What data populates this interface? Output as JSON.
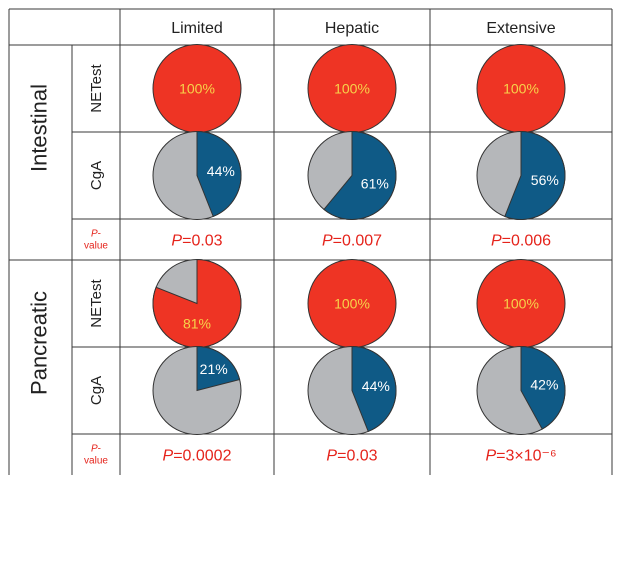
{
  "chart_data": {
    "type": "pie",
    "columns": [
      "Limited",
      "Hepatic",
      "Extensive"
    ],
    "groups": [
      {
        "name": "Intestinal",
        "rows": [
          {
            "marker": "NETest",
            "values": [
              100,
              100,
              100
            ],
            "labels": [
              "100%",
              "100%",
              "100%"
            ]
          },
          {
            "marker": "CgA",
            "values": [
              44,
              61,
              56
            ],
            "labels": [
              "44%",
              "61%",
              "56%"
            ]
          }
        ],
        "pvalue_label": "P-value",
        "pvalues": [
          "0.03",
          "0.007",
          "0.006"
        ]
      },
      {
        "name": "Pancreatic",
        "rows": [
          {
            "marker": "NETest",
            "values": [
              81,
              100,
              100
            ],
            "labels": [
              "81%",
              "100%",
              "100%"
            ]
          },
          {
            "marker": "CgA",
            "values": [
              21,
              44,
              42
            ],
            "labels": [
              "21%",
              "44%",
              "42%"
            ]
          }
        ],
        "pvalue_label": "P-value",
        "pvalues": [
          "0.0002",
          "0.03",
          "3×10⁻⁶"
        ]
      }
    ],
    "colors": {
      "netest": "#ee3424",
      "cga": "#0f5a86",
      "remainder": "#b5b7ba",
      "netest_label": "#f7d34a",
      "cga_label": "#ffffff",
      "pvalue_text": "#e5231b"
    }
  }
}
